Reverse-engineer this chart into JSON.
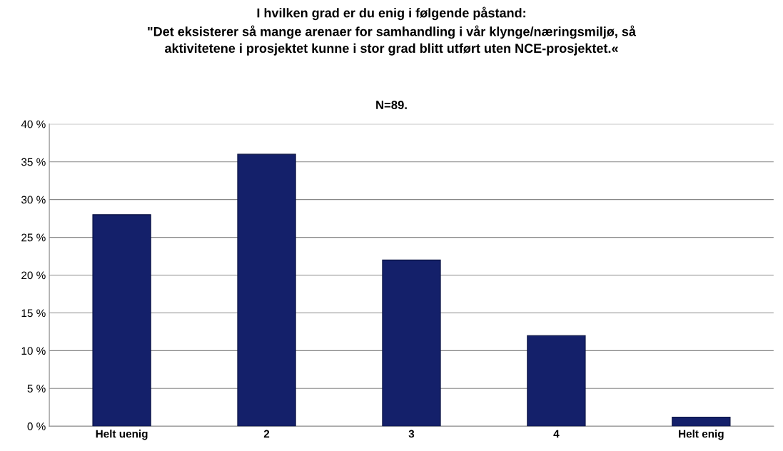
{
  "chart_data": {
    "type": "bar",
    "title": "I hvilken grad er du enig i følgende påstand:\n\"Det eksisterer så mange arenaer for samhandling i vår klynge/næringsmiljø, så\naktivitetene i prosjektet kunne i stor grad blitt utført uten NCE-prosjektet.«",
    "subtitle": "N=89.",
    "categories": [
      "Helt uenig",
      "2",
      "3",
      "4",
      "Helt enig"
    ],
    "values": [
      28,
      36,
      22,
      12,
      1.2
    ],
    "color": "#14206a",
    "ylim": [
      0,
      40
    ],
    "yticks": [
      {
        "value": 0,
        "label": "0 %"
      },
      {
        "value": 5,
        "label": "5 %"
      },
      {
        "value": 10,
        "label": "10 %"
      },
      {
        "value": 15,
        "label": "15 %"
      },
      {
        "value": 20,
        "label": "20 %"
      },
      {
        "value": 25,
        "label": "25 %"
      },
      {
        "value": 30,
        "label": "30 %"
      },
      {
        "value": 35,
        "label": "35 %"
      },
      {
        "value": 40,
        "label": "40 %"
      }
    ],
    "grid": "y"
  }
}
